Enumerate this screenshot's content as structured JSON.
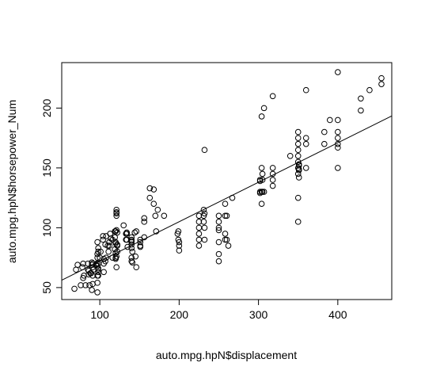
{
  "chart_data": {
    "type": "scatter",
    "title": "",
    "xlabel": "auto.mpg.hpN$displacement",
    "ylabel": "auto.mpg.hpN$horsepower_Num",
    "xlim": [
      52,
      468
    ],
    "ylim": [
      40,
      238
    ],
    "xticks": [
      100,
      200,
      300,
      400
    ],
    "yticks": [
      50,
      100,
      150,
      200
    ],
    "grid": false,
    "legend": "none",
    "point_style": "open-circle",
    "regression_line": {
      "intercept": 39.0,
      "slope": 0.33
    },
    "points": [
      [
        68,
        49
      ],
      [
        70,
        65
      ],
      [
        72,
        69
      ],
      [
        76,
        52
      ],
      [
        78,
        67
      ],
      [
        79,
        70
      ],
      [
        79,
        58
      ],
      [
        80,
        60
      ],
      [
        82,
        52
      ],
      [
        85,
        65
      ],
      [
        85,
        70
      ],
      [
        86,
        61
      ],
      [
        86,
        64
      ],
      [
        87,
        52
      ],
      [
        88,
        62
      ],
      [
        89,
        62
      ],
      [
        90,
        48
      ],
      [
        90,
        69
      ],
      [
        90,
        71
      ],
      [
        91,
        53
      ],
      [
        91,
        60
      ],
      [
        91,
        67
      ],
      [
        91,
        70
      ],
      [
        92,
        65
      ],
      [
        95,
        69
      ],
      [
        96,
        70
      ],
      [
        97,
        46
      ],
      [
        97,
        54
      ],
      [
        97,
        60
      ],
      [
        97,
        68
      ],
      [
        97,
        75
      ],
      [
        97,
        78
      ],
      [
        97,
        88
      ],
      [
        98,
        60
      ],
      [
        98,
        63
      ],
      [
        98,
        65
      ],
      [
        98,
        66
      ],
      [
        98,
        70
      ],
      [
        98,
        80
      ],
      [
        98,
        83
      ],
      [
        100,
        75
      ],
      [
        101,
        80
      ],
      [
        104,
        90
      ],
      [
        104,
        93
      ],
      [
        105,
        63
      ],
      [
        105,
        70
      ],
      [
        105,
        74
      ],
      [
        107,
        72
      ],
      [
        107,
        86
      ],
      [
        108,
        75
      ],
      [
        108,
        93
      ],
      [
        110,
        85
      ],
      [
        111,
        80
      ],
      [
        112,
        85
      ],
      [
        112,
        88
      ],
      [
        113,
        95
      ],
      [
        114,
        91
      ],
      [
        116,
        75
      ],
      [
        116,
        90
      ],
      [
        119,
        82
      ],
      [
        119,
        92
      ],
      [
        119,
        97
      ],
      [
        120,
        74
      ],
      [
        120,
        75
      ],
      [
        120,
        79
      ],
      [
        120,
        87
      ],
      [
        120,
        88
      ],
      [
        120,
        97
      ],
      [
        121,
        67
      ],
      [
        121,
        76
      ],
      [
        121,
        98
      ],
      [
        121,
        110
      ],
      [
        121,
        112
      ],
      [
        121,
        113
      ],
      [
        121,
        115
      ],
      [
        122,
        80
      ],
      [
        122,
        85
      ],
      [
        122,
        86
      ],
      [
        122,
        96
      ],
      [
        130,
        102
      ],
      [
        133,
        90
      ],
      [
        133,
        95
      ],
      [
        134,
        90
      ],
      [
        134,
        95
      ],
      [
        134,
        96
      ],
      [
        135,
        84
      ],
      [
        140,
        72
      ],
      [
        140,
        75
      ],
      [
        140,
        83
      ],
      [
        140,
        86
      ],
      [
        140,
        88
      ],
      [
        140,
        89
      ],
      [
        140,
        90
      ],
      [
        140,
        92
      ],
      [
        141,
        71
      ],
      [
        141,
        80
      ],
      [
        144,
        96
      ],
      [
        145,
        76
      ],
      [
        146,
        97
      ],
      [
        146,
        67
      ],
      [
        151,
        84
      ],
      [
        151,
        85
      ],
      [
        151,
        88
      ],
      [
        151,
        90
      ],
      [
        156,
        92
      ],
      [
        156,
        105
      ],
      [
        156,
        108
      ],
      [
        163,
        125
      ],
      [
        163,
        133
      ],
      [
        168,
        120
      ],
      [
        168,
        132
      ],
      [
        170,
        110
      ],
      [
        171,
        97
      ],
      [
        173,
        115
      ],
      [
        181,
        110
      ],
      [
        198,
        95
      ],
      [
        199,
        90
      ],
      [
        199,
        97
      ],
      [
        200,
        81
      ],
      [
        200,
        85
      ],
      [
        200,
        88
      ],
      [
        225,
        85
      ],
      [
        225,
        90
      ],
      [
        225,
        95
      ],
      [
        225,
        100
      ],
      [
        225,
        105
      ],
      [
        225,
        110
      ],
      [
        231,
        105
      ],
      [
        231,
        110
      ],
      [
        231,
        115
      ],
      [
        232,
        90
      ],
      [
        232,
        100
      ],
      [
        232,
        112
      ],
      [
        232,
        165
      ],
      [
        250,
        72
      ],
      [
        250,
        78
      ],
      [
        250,
        88
      ],
      [
        250,
        98
      ],
      [
        250,
        100
      ],
      [
        250,
        105
      ],
      [
        250,
        110
      ],
      [
        258,
        90
      ],
      [
        258,
        95
      ],
      [
        258,
        110
      ],
      [
        258,
        120
      ],
      [
        260,
        90
      ],
      [
        260,
        110
      ],
      [
        262,
        85
      ],
      [
        267,
        125
      ],
      [
        302,
        129
      ],
      [
        302,
        130
      ],
      [
        302,
        139
      ],
      [
        302,
        140
      ],
      [
        304,
        120
      ],
      [
        304,
        130
      ],
      [
        304,
        150
      ],
      [
        304,
        193
      ],
      [
        305,
        130
      ],
      [
        305,
        140
      ],
      [
        305,
        145
      ],
      [
        307,
        130
      ],
      [
        307,
        200
      ],
      [
        318,
        135
      ],
      [
        318,
        140
      ],
      [
        318,
        145
      ],
      [
        318,
        150
      ],
      [
        318,
        210
      ],
      [
        340,
        160
      ],
      [
        350,
        105
      ],
      [
        350,
        125
      ],
      [
        350,
        145
      ],
      [
        350,
        150
      ],
      [
        350,
        155
      ],
      [
        350,
        160
      ],
      [
        350,
        165
      ],
      [
        350,
        170
      ],
      [
        350,
        175
      ],
      [
        350,
        180
      ],
      [
        351,
        142
      ],
      [
        351,
        148
      ],
      [
        351,
        149
      ],
      [
        351,
        152
      ],
      [
        351,
        153
      ],
      [
        360,
        150
      ],
      [
        360,
        170
      ],
      [
        360,
        175
      ],
      [
        360,
        215
      ],
      [
        383,
        170
      ],
      [
        383,
        180
      ],
      [
        390,
        190
      ],
      [
        400,
        150
      ],
      [
        400,
        167
      ],
      [
        400,
        170
      ],
      [
        400,
        175
      ],
      [
        400,
        180
      ],
      [
        400,
        190
      ],
      [
        400,
        230
      ],
      [
        429,
        198
      ],
      [
        429,
        208
      ],
      [
        440,
        215
      ],
      [
        455,
        220
      ],
      [
        455,
        225
      ]
    ]
  }
}
